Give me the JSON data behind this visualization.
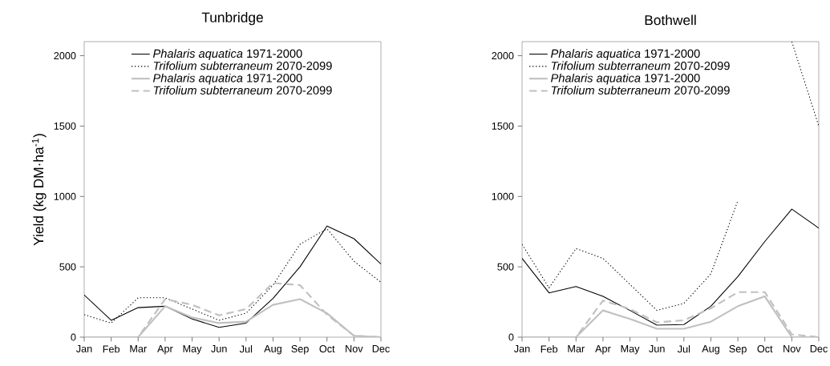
{
  "chart_data": [
    {
      "type": "line",
      "title": "Tunbridge",
      "ylabel": "Yield (kg DM·ha$^{-1}$)",
      "categories": [
        "Jan",
        "Feb",
        "Mar",
        "Apr",
        "May",
        "Jun",
        "Jul",
        "Aug",
        "Sep",
        "Oct",
        "Nov",
        "Dec"
      ],
      "ylim": [
        0,
        2100
      ],
      "yticks": [
        0,
        500,
        1000,
        1500,
        2000
      ],
      "legend": "top",
      "series": [
        {
          "name": "*Phalaris aquatica* 1971-2000",
          "color": "#000000",
          "line_style": "solid",
          "values": [
            300,
            120,
            210,
            220,
            130,
            70,
            100,
            275,
            500,
            790,
            700,
            520
          ]
        },
        {
          "name": "*Trifolium subterraneum* 2070-2099",
          "color": "#000000",
          "line_style": "dotted",
          "values": [
            160,
            100,
            280,
            280,
            200,
            120,
            170,
            370,
            660,
            770,
            540,
            390
          ]
        },
        {
          "name": "*Phalaris aquatica* 1971-2000",
          "color": "#c0c0c0",
          "line_style": "solid",
          "values": [
            0,
            0,
            0,
            220,
            140,
            100,
            110,
            230,
            270,
            170,
            10,
            0
          ]
        },
        {
          "name": "*Trifolium subterraneum* 2070-2099",
          "color": "#c0c0c0",
          "line_style": "dashed",
          "values": [
            0,
            0,
            0,
            270,
            230,
            155,
            200,
            385,
            370,
            160,
            10,
            0
          ]
        }
      ]
    },
    {
      "type": "line",
      "title": "Bothwell",
      "categories": [
        "Jan",
        "Feb",
        "Mar",
        "Apr",
        "May",
        "Jun",
        "Jul",
        "Aug",
        "Sep",
        "Oct",
        "Nov",
        "Dec"
      ],
      "ylim": [
        0,
        2100
      ],
      "yticks": [
        0,
        500,
        1000,
        1500,
        2000
      ],
      "legend": "top left",
      "series": [
        {
          "name": "*Phalaris aquatica* 1971-2000",
          "color": "#000000",
          "line_style": "solid",
          "values": [
            560,
            315,
            360,
            290,
            190,
            85,
            90,
            220,
            430,
            680,
            910,
            775
          ]
        },
        {
          "name": "*Trifolium subterraneum* 2070-2099",
          "color": "#000000",
          "line_style": "dotted",
          "values": [
            660,
            350,
            630,
            560,
            375,
            190,
            240,
            450,
            970,
            null,
            2100,
            1500
          ]
        },
        {
          "name": "*Phalaris aquatica* 1971-2000",
          "color": "#c0c0c0",
          "line_style": "solid",
          "values": [
            0,
            0,
            0,
            190,
            130,
            60,
            60,
            110,
            220,
            290,
            0,
            0
          ]
        },
        {
          "name": "*Trifolium subterraneum* 2070-2099",
          "color": "#c0c0c0",
          "line_style": "dashed",
          "values": [
            0,
            0,
            0,
            260,
            200,
            105,
            120,
            205,
            320,
            320,
            20,
            0
          ]
        }
      ]
    }
  ]
}
